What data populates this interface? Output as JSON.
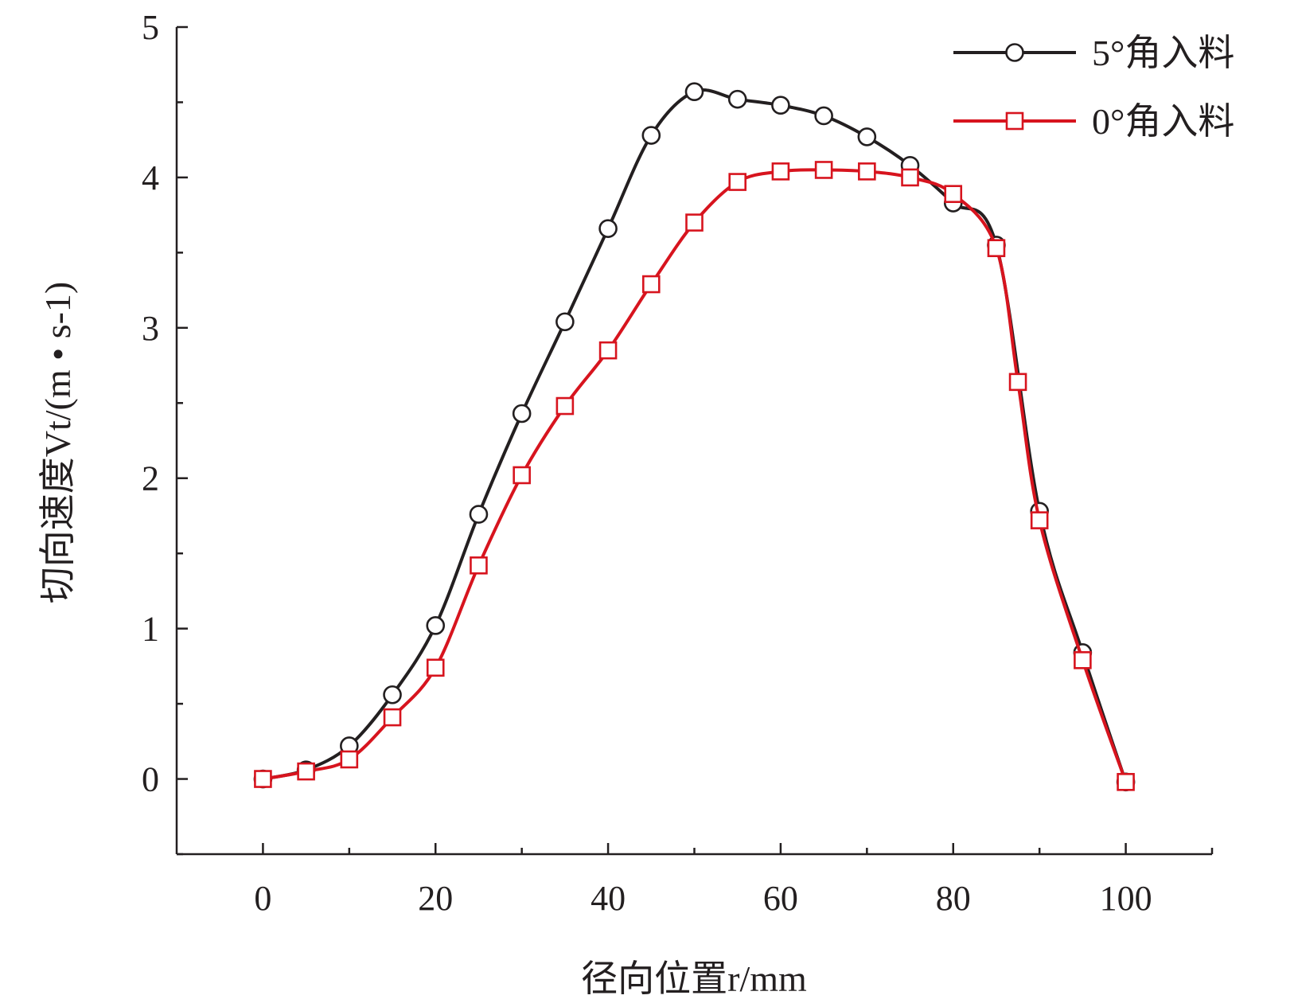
{
  "chart_data": {
    "type": "line",
    "xlabel": "径向位置r/mm",
    "ylabel": "切向速度Vt/(m • s-1)",
    "xlim": [
      -10,
      110
    ],
    "ylim": [
      -0.5,
      5
    ],
    "xticks": [
      0,
      20,
      40,
      60,
      80,
      100
    ],
    "yticks": [
      0,
      1,
      2,
      3,
      4,
      5
    ],
    "grid": false,
    "legend_position": "top-right",
    "series": [
      {
        "name": "5°角入料",
        "marker": "circle",
        "color": "#231f20",
        "x": [
          0,
          5,
          10,
          15,
          20,
          25,
          30,
          35,
          40,
          45,
          50,
          55,
          60,
          65,
          70,
          75,
          80,
          85,
          90,
          95,
          100
        ],
        "y": [
          0,
          0.06,
          0.22,
          0.56,
          1.02,
          1.76,
          2.43,
          3.04,
          3.66,
          4.28,
          4.57,
          4.52,
          4.48,
          4.41,
          4.27,
          4.08,
          3.83,
          3.55,
          1.78,
          0.84,
          -0.02
        ]
      },
      {
        "name": "0°角入料",
        "marker": "square",
        "color": "#d7141e",
        "x": [
          0,
          5,
          10,
          15,
          20,
          25,
          30,
          35,
          40,
          45,
          50,
          55,
          60,
          65,
          70,
          75,
          80,
          85,
          87.5,
          90,
          95,
          100
        ],
        "y": [
          0,
          0.05,
          0.13,
          0.41,
          0.74,
          1.42,
          2.02,
          2.48,
          2.85,
          3.29,
          3.7,
          3.97,
          4.04,
          4.05,
          4.04,
          4.0,
          3.89,
          3.53,
          2.64,
          1.72,
          0.79,
          -0.02
        ]
      }
    ]
  }
}
